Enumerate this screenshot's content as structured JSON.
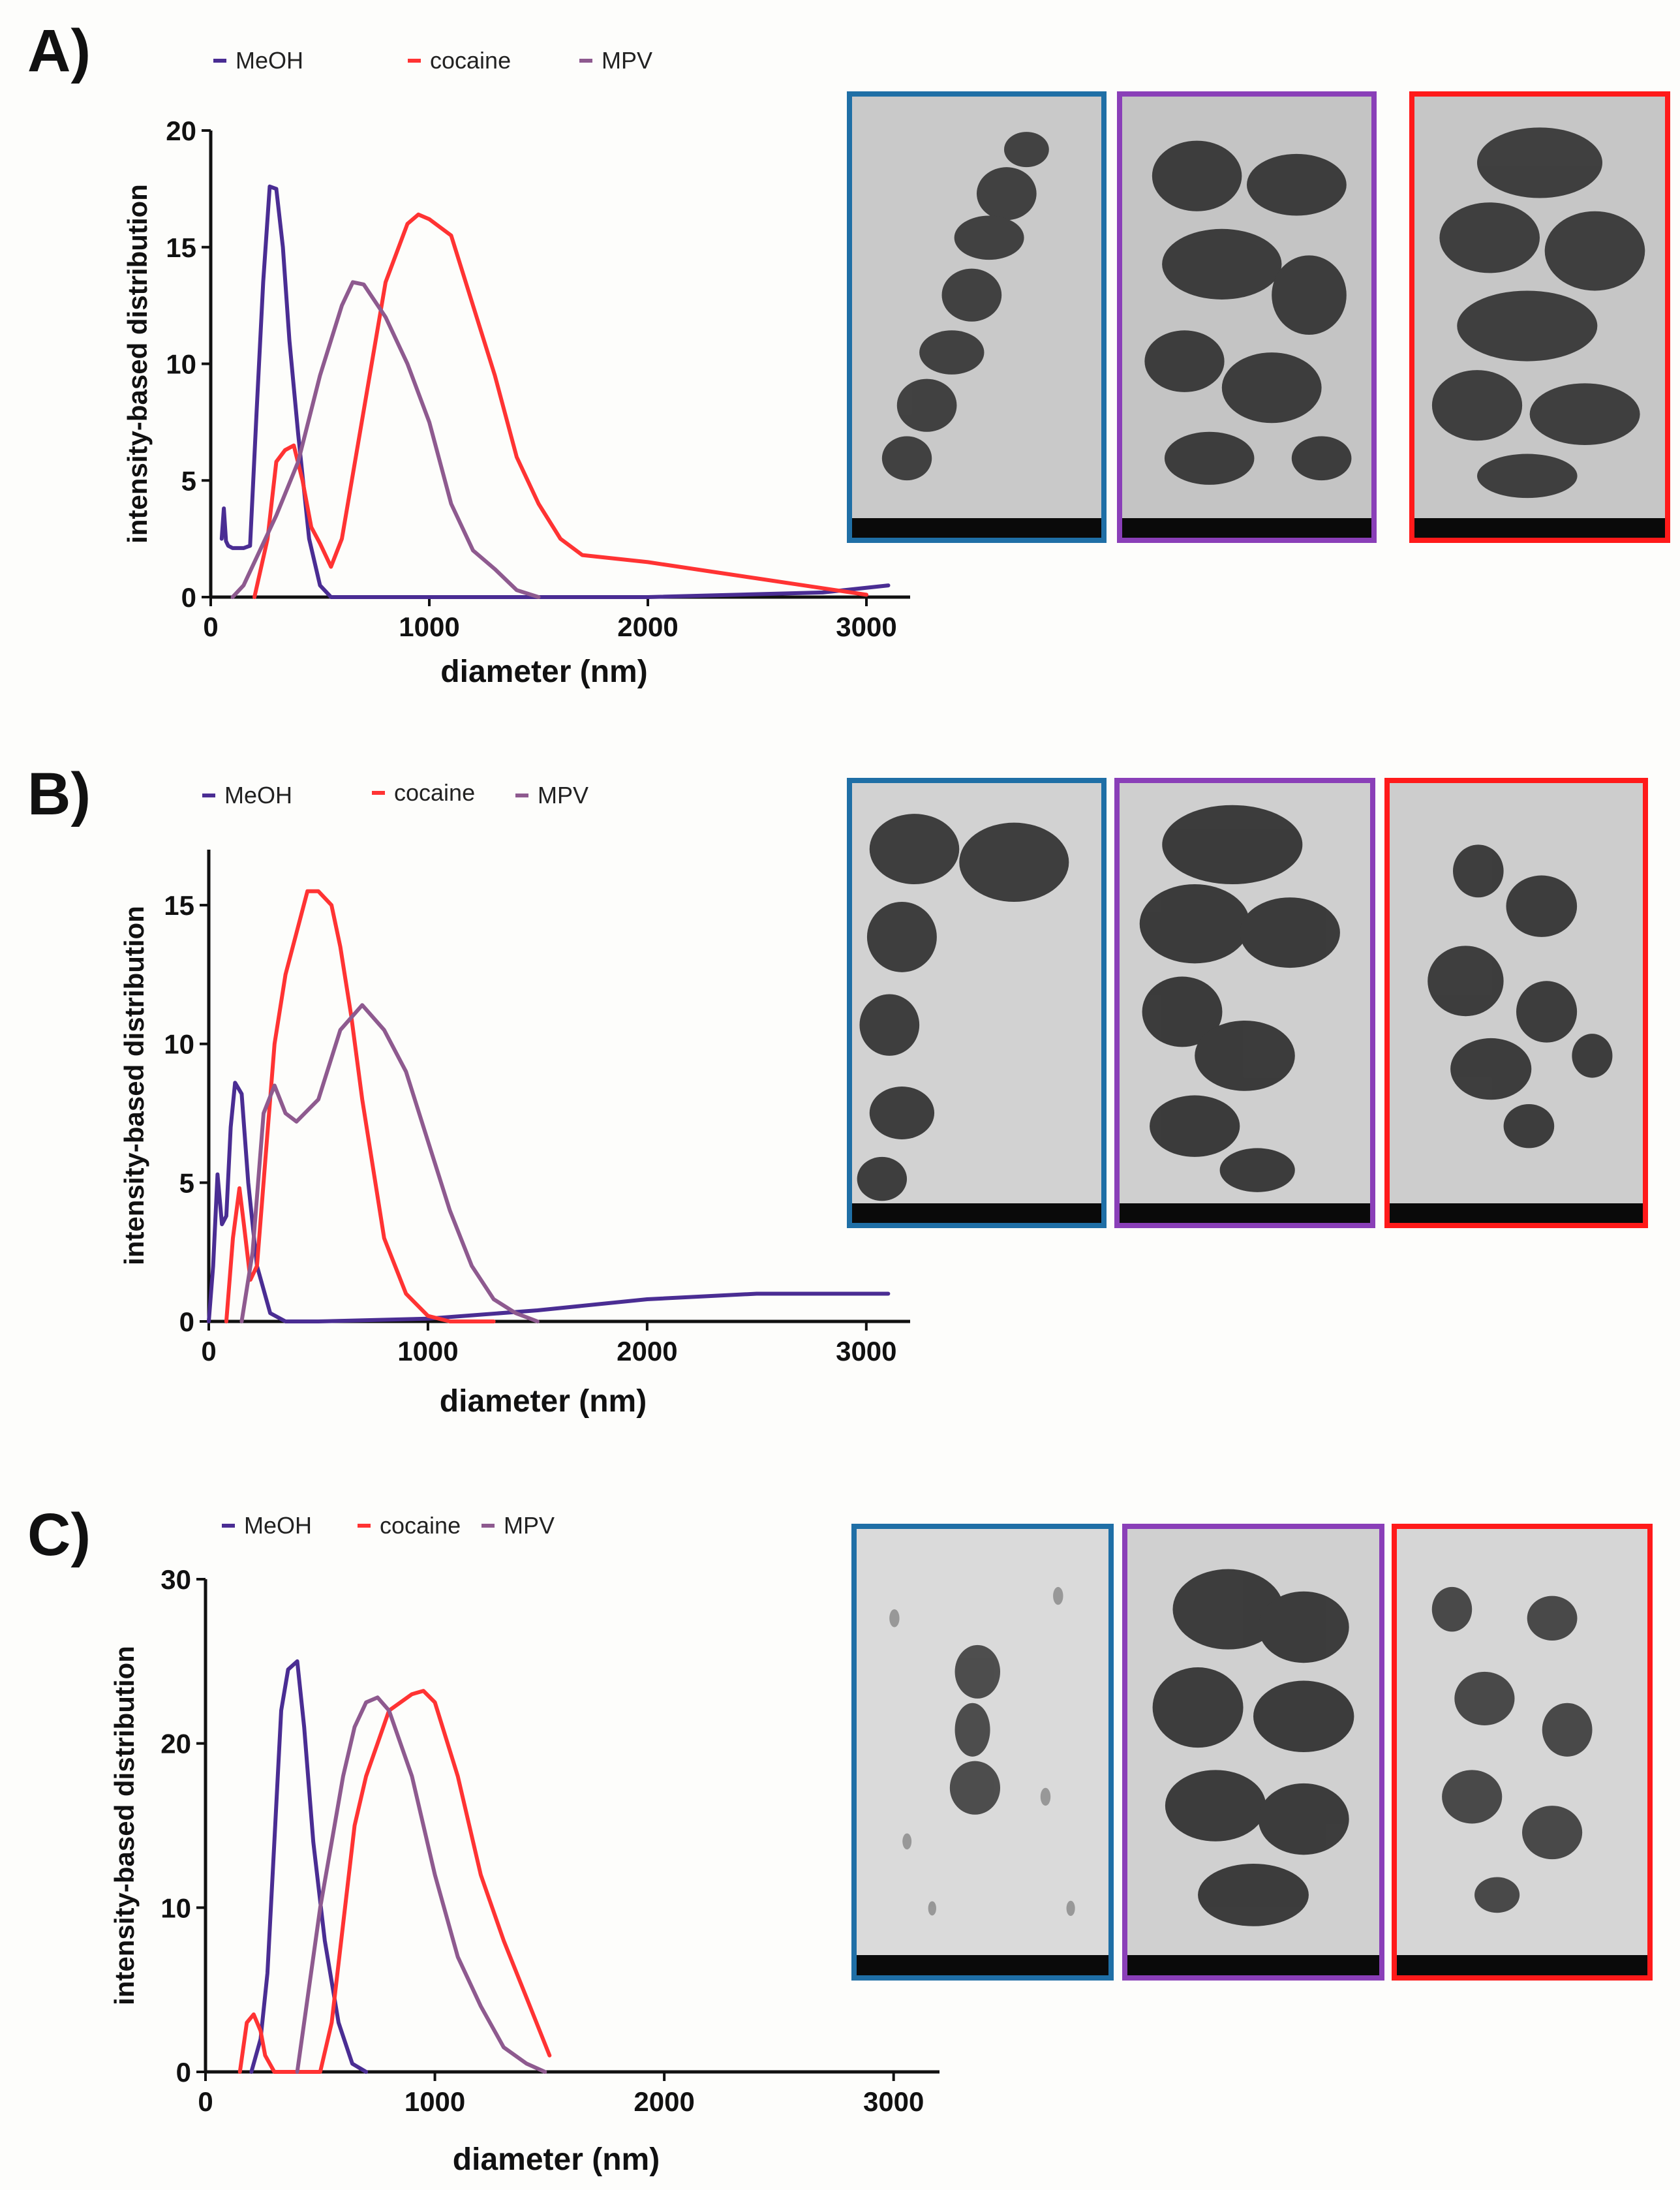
{
  "colors": {
    "meoh": "#4a2d93",
    "cocaine": "#ff3333",
    "mpv": "#8e5a8f",
    "frame_blue": "#1f6fa6",
    "frame_purple": "#8a3fb8",
    "frame_red": "#ff1a1a"
  },
  "panels": [
    {
      "label": "A)",
      "legend": [
        "MeOH",
        "cocaine",
        "MPV"
      ],
      "chart_data": {
        "type": "line",
        "title": "",
        "xlabel": "diameter (nm)",
        "ylabel": "intensity-based distribution",
        "xlim": [
          0,
          3200
        ],
        "ylim": [
          0,
          20
        ],
        "xticks": [
          "0",
          "1000",
          "2000",
          "3000"
        ],
        "yticks": [
          "0",
          "5",
          "10",
          "15",
          "20"
        ],
        "series": [
          {
            "name": "MeOH",
            "x": [
              50,
              60,
              70,
              80,
              100,
              150,
              180,
              210,
              240,
              270,
              300,
              330,
              360,
              400,
              450,
              500,
              550,
              600,
              1000,
              2000,
              2800,
              3100
            ],
            "y": [
              2.5,
              3.8,
              2.4,
              2.2,
              2.1,
              2.1,
              2.2,
              8,
              13.5,
              17.6,
              17.5,
              15,
              11,
              7,
              2.5,
              0.5,
              0,
              0,
              0,
              0,
              0.2,
              0.5
            ]
          },
          {
            "name": "cocaine",
            "x": [
              200,
              260,
              300,
              340,
              380,
              420,
              460,
              500,
              550,
              600,
              700,
              800,
              900,
              950,
              1000,
              1100,
              1200,
              1300,
              1400,
              1500,
              1600,
              1700,
              2000,
              2500,
              3000
            ],
            "y": [
              0,
              2.5,
              5.8,
              6.3,
              6.5,
              5,
              3,
              2.3,
              1.3,
              2.5,
              8,
              13.5,
              16,
              16.4,
              16.2,
              15.5,
              12.5,
              9.5,
              6,
              4,
              2.5,
              1.8,
              1.5,
              0.8,
              0.1
            ]
          },
          {
            "name": "MPV",
            "x": [
              100,
              150,
              200,
              300,
              400,
              500,
              600,
              650,
              700,
              800,
              900,
              1000,
              1100,
              1200,
              1300,
              1400,
              1500
            ],
            "y": [
              0,
              0.5,
              1.5,
              3.5,
              5.8,
              9.5,
              12.5,
              13.5,
              13.4,
              12,
              10,
              7.5,
              4,
              2,
              1.2,
              0.3,
              0
            ]
          }
        ]
      }
    },
    {
      "label": "B)",
      "legend": [
        "MeOH",
        "cocaine",
        "MPV"
      ],
      "chart_data": {
        "type": "line",
        "title": "",
        "xlabel": "diameter (nm)",
        "ylabel": "intensity-based distribution",
        "xlim": [
          0,
          3200
        ],
        "ylim": [
          0,
          17
        ],
        "xticks": [
          "0",
          "1000",
          "2000",
          "3000"
        ],
        "yticks": [
          "0",
          "5",
          "10",
          "15"
        ],
        "series": [
          {
            "name": "MeOH",
            "x": [
              0,
              20,
              40,
              60,
              80,
              100,
              120,
              150,
              180,
              220,
              280,
              350,
              500,
              1000,
              1500,
              2000,
              2500,
              3100
            ],
            "y": [
              0,
              2,
              5.3,
              3.5,
              3.8,
              7,
              8.6,
              8.2,
              5,
              2,
              0.3,
              0,
              0,
              0.1,
              0.4,
              0.8,
              1.0,
              1.0
            ]
          },
          {
            "name": "cocaine",
            "x": [
              80,
              110,
              140,
              160,
              190,
              220,
              260,
              300,
              350,
              400,
              450,
              500,
              560,
              600,
              650,
              700,
              800,
              900,
              1000,
              1100,
              1200,
              1300
            ],
            "y": [
              0,
              3,
              4.8,
              3.5,
              1.5,
              2,
              6,
              10,
              12.5,
              14,
              15.5,
              15.5,
              15,
              13.5,
              11,
              8,
              3,
              1,
              0.2,
              0,
              0,
              0
            ]
          },
          {
            "name": "MPV",
            "x": [
              150,
              200,
              250,
              300,
              350,
              400,
              500,
              600,
              700,
              800,
              900,
              1000,
              1100,
              1200,
              1300,
              1400,
              1500
            ],
            "y": [
              0,
              2.5,
              7.5,
              8.5,
              7.5,
              7.2,
              8,
              10.5,
              11.4,
              10.5,
              9,
              6.5,
              4,
              2,
              0.8,
              0.3,
              0
            ]
          }
        ]
      }
    },
    {
      "label": "C)",
      "legend": [
        "MeOH",
        "cocaine",
        "MPV"
      ],
      "chart_data": {
        "type": "line",
        "title": "",
        "xlabel": "diameter (nm)",
        "ylabel": "intensity-based distribution",
        "xlim": [
          0,
          3200
        ],
        "ylim": [
          0,
          30
        ],
        "xticks": [
          "0",
          "1000",
          "2000",
          "3000"
        ],
        "yticks": [
          "0",
          "10",
          "20",
          "30"
        ],
        "series": [
          {
            "name": "MeOH",
            "x": [
              200,
              240,
              270,
              300,
              330,
              360,
              400,
              430,
              470,
              520,
              580,
              640,
              700
            ],
            "y": [
              0,
              2,
              6,
              14,
              22,
              24.5,
              25,
              21,
              14,
              8,
              3,
              0.5,
              0
            ]
          },
          {
            "name": "cocaine",
            "x": [
              150,
              180,
              210,
              240,
              260,
              300,
              500,
              550,
              600,
              650,
              700,
              800,
              900,
              950,
              1000,
              1100,
              1200,
              1300,
              1400,
              1500
            ],
            "y": [
              0,
              3,
              3.5,
              2.5,
              1,
              0,
              0,
              3,
              9,
              15,
              18,
              22,
              23,
              23.2,
              22.5,
              18,
              12,
              8,
              4.5,
              1
            ]
          },
          {
            "name": "MPV",
            "x": [
              400,
              450,
              500,
              550,
              600,
              650,
              700,
              750,
              800,
              900,
              1000,
              1100,
              1200,
              1300,
              1400,
              1480
            ],
            "y": [
              0,
              5,
              10,
              14,
              18,
              21,
              22.5,
              22.8,
              22,
              18,
              12,
              7,
              4,
              1.5,
              0.5,
              0
            ]
          }
        ]
      }
    }
  ]
}
